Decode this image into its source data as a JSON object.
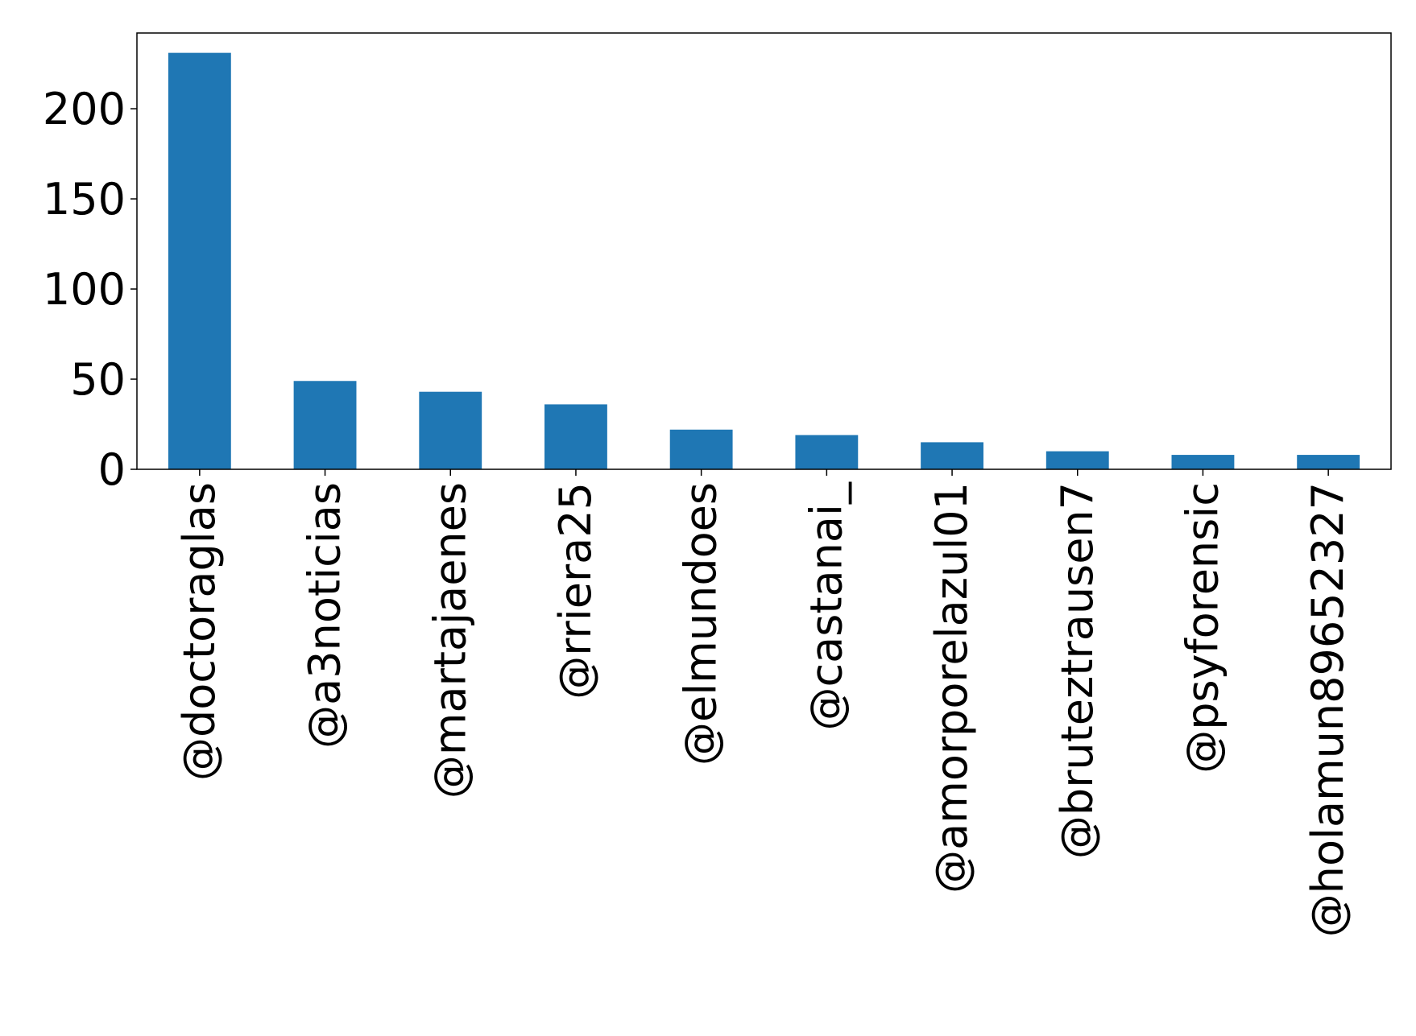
{
  "chart_data": {
    "type": "bar",
    "title": "",
    "xlabel": "",
    "ylabel": "",
    "categories": [
      "@doctoraglas",
      "@a3noticias",
      "@martajaenes",
      "@rriera25",
      "@elmundoes",
      "@castanai_",
      "@amorporelazul01",
      "@bruteztrausen7",
      "@psyforensic",
      "@holamun89652327"
    ],
    "values": [
      231,
      49,
      43,
      36,
      22,
      19,
      15,
      10,
      8,
      8
    ],
    "ylim": [
      0,
      242
    ],
    "yticks": [
      0,
      50,
      100,
      150,
      200
    ],
    "grid": false,
    "bar_color": "#1f77b4"
  }
}
